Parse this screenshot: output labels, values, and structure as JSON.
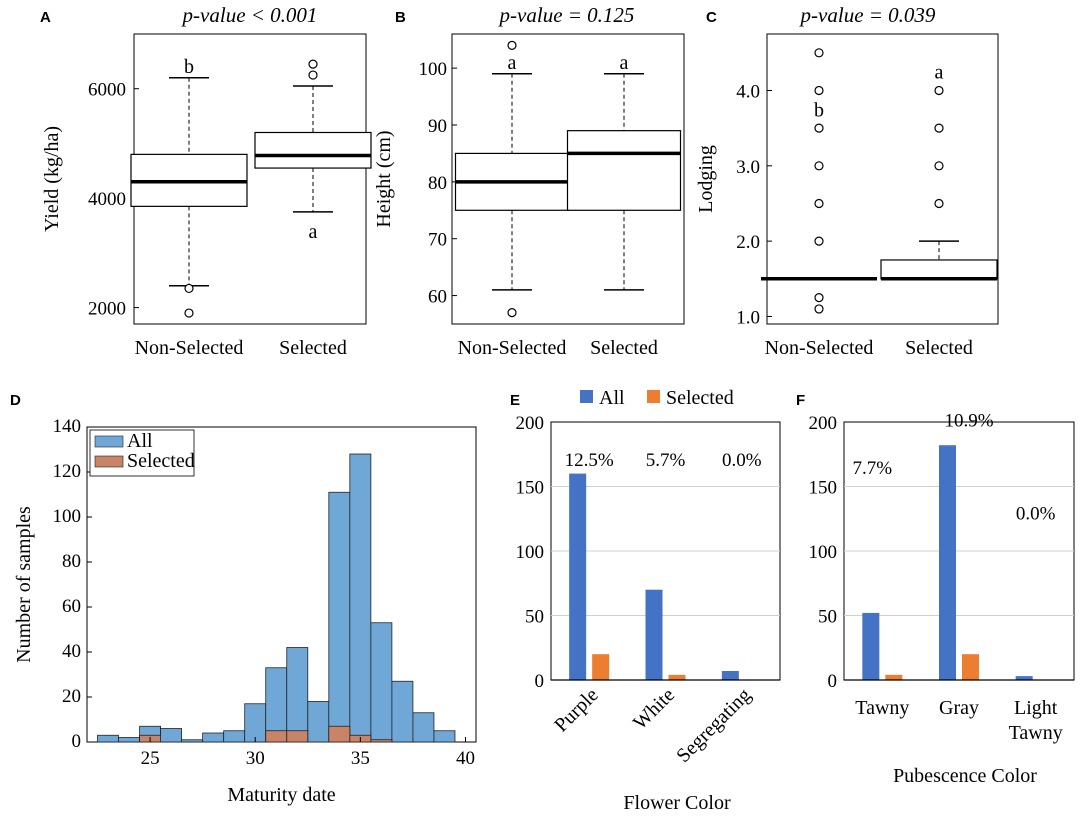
{
  "chart_data": [
    {
      "panel": "A",
      "type": "box",
      "title": "p-value < 0.001",
      "ylabel": "Yield (kg/ha)",
      "ylim": [
        1700,
        7000
      ],
      "yticks": [
        2000,
        4000,
        6000
      ],
      "categories": [
        "Non-Selected",
        "Selected"
      ],
      "boxes": [
        {
          "whisker_low": 2400,
          "q1": 3850,
          "median": 4300,
          "q3": 4800,
          "whisker_high": 6200,
          "outliers": [
            2350,
            1900
          ],
          "letter": "b",
          "letter_pos": "above"
        },
        {
          "whisker_low": 3750,
          "q1": 4550,
          "median": 4780,
          "q3": 5200,
          "whisker_high": 6050,
          "outliers": [
            6250,
            6450
          ],
          "letter": "a",
          "letter_pos": "below"
        }
      ]
    },
    {
      "panel": "B",
      "type": "box",
      "title": "p-value = 0.125",
      "ylabel": "Height (cm)",
      "ylim": [
        55,
        106
      ],
      "yticks": [
        60,
        70,
        80,
        90,
        100
      ],
      "categories": [
        "Non-Selected",
        "Selected"
      ],
      "boxes": [
        {
          "whisker_low": 61,
          "q1": 75,
          "median": 80,
          "q3": 85,
          "whisker_high": 99,
          "outliers": [
            104,
            57
          ],
          "letter": "a",
          "letter_pos": "above"
        },
        {
          "whisker_low": 61,
          "q1": 75,
          "median": 85,
          "q3": 89,
          "whisker_high": 99,
          "outliers": [],
          "letter": "a",
          "letter_pos": "above"
        }
      ]
    },
    {
      "panel": "C",
      "type": "box",
      "title": "p-value = 0.039",
      "ylabel": "Lodging",
      "ylim": [
        0.9,
        4.75
      ],
      "yticks": [
        "1.0",
        "2.0",
        "3.0",
        "4.0"
      ],
      "categories": [
        "Non-Selected",
        "Selected"
      ],
      "boxes": [
        {
          "whisker_low": 1.5,
          "q1": 1.5,
          "median": 1.5,
          "q3": 1.5,
          "whisker_high": 1.5,
          "outliers": [
            4.5,
            4.0,
            3.5,
            3.0,
            2.5,
            2.0,
            1.25,
            1.1
          ],
          "letter": "b",
          "letter_value": 3.75
        },
        {
          "whisker_low": 1.5,
          "q1": 1.5,
          "median": 1.5,
          "q3": 1.75,
          "whisker_high": 2.0,
          "outliers": [
            4.0,
            3.5,
            3.0,
            2.5
          ],
          "letter": "a",
          "letter_value": 4.25
        }
      ]
    },
    {
      "panel": "D",
      "type": "bar",
      "subtype": "histogram",
      "xlabel": "Maturity date",
      "ylabel": "Number of samples",
      "xlim": [
        22,
        40.5
      ],
      "ylim": [
        0,
        140
      ],
      "xticks": [
        25,
        30,
        35,
        40
      ],
      "yticks": [
        0,
        20,
        40,
        60,
        80,
        100,
        120,
        140
      ],
      "bin_start": 22.5,
      "bin_width": 1,
      "series": [
        {
          "name": "All",
          "color": "#6fa8d6",
          "values": [
            3,
            2,
            7,
            6,
            1,
            4,
            5,
            17,
            33,
            42,
            18,
            111,
            128,
            53,
            27,
            13,
            5
          ]
        },
        {
          "name": "Selected",
          "color": "#c98467",
          "values": [
            0,
            0,
            3,
            0,
            0,
            0,
            0,
            0,
            5,
            5,
            0,
            7,
            3,
            1,
            0,
            0,
            0
          ]
        }
      ],
      "legend": "top-left"
    },
    {
      "panel": "E",
      "type": "bar",
      "xlabel": "Flower Color",
      "ylabel": "",
      "ylim": [
        0,
        200
      ],
      "yticks": [
        0,
        50,
        100,
        150,
        200
      ],
      "categories": [
        "Purple",
        "White",
        "Segregating"
      ],
      "series": [
        {
          "name": "All",
          "color": "#4472c4",
          "values": [
            160,
            70,
            7
          ]
        },
        {
          "name": "Selected",
          "color": "#ed7d31",
          "values": [
            20,
            4,
            0
          ]
        }
      ],
      "annotations": [
        "12.5%",
        "5.7%",
        "0.0%"
      ],
      "legend": "top"
    },
    {
      "panel": "F",
      "type": "bar",
      "xlabel": "Pubescence Color",
      "ylabel": "",
      "ylim": [
        0,
        200
      ],
      "yticks": [
        0,
        50,
        100,
        150,
        200
      ],
      "categories": [
        "Tawny",
        "Gray",
        "Light Tawny"
      ],
      "category_lines": [
        [
          "Tawny"
        ],
        [
          "Gray"
        ],
        [
          "Light",
          "Tawny"
        ]
      ],
      "series": [
        {
          "name": "All",
          "color": "#4472c4",
          "values": [
            52,
            182,
            3
          ]
        },
        {
          "name": "Selected",
          "color": "#ed7d31",
          "values": [
            4,
            20,
            0
          ]
        }
      ],
      "annotations": [
        "7.7%",
        "10.9%",
        "0.0%"
      ],
      "annotation_values": [
        165,
        202,
        130
      ]
    }
  ]
}
